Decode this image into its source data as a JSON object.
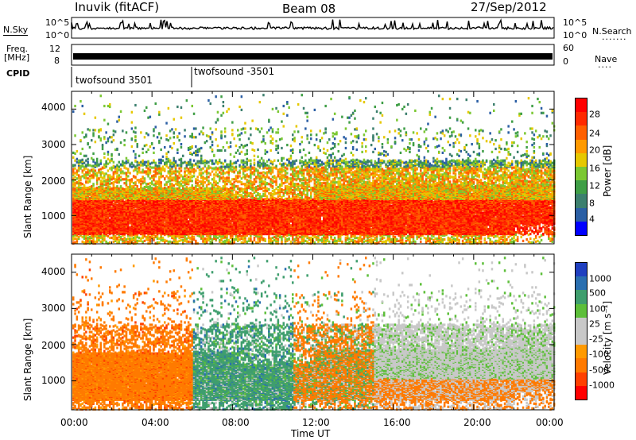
{
  "header": {
    "station": "Inuvik (fitACF)",
    "beam": "Beam 08",
    "date": "27/Sep/2012"
  },
  "summary": {
    "left_top_label": "N.Sky",
    "left_top_ticks": [
      "10^5",
      "10^0"
    ],
    "right_top_label": "N.Search",
    "right_top_ticks": [
      "10^5",
      "10^0"
    ],
    "freq_label": "Freq.",
    "freq_unit": "[MHz]",
    "freq_ticks": [
      "12",
      "8"
    ],
    "nave_label": "Nave",
    "nave_ticks": [
      "60",
      "0"
    ],
    "cpid_label": "CPID",
    "cpid_segments": [
      {
        "name": "twofsound 3501",
        "start_hour": 0
      },
      {
        "name": "twofsound -3501",
        "start_hour": 6
      }
    ]
  },
  "chart_data": [
    {
      "type": "heatmap",
      "name": "power",
      "xlabel": "",
      "ylabel": "Slant Range [km]",
      "xlim": [
        0,
        24
      ],
      "ylim": [
        200,
        4500
      ],
      "yticks": [
        1000,
        2000,
        3000,
        4000
      ],
      "colorbar": {
        "label": "Power [dB]",
        "ticks": [
          "28",
          "24",
          "20",
          "16",
          "12",
          "8",
          "4"
        ],
        "colors": [
          "#ff0000",
          "#ff2a00",
          "#ff6000",
          "#ff9a00",
          "#e6c800",
          "#7bc832",
          "#3f9e46",
          "#3c7f6e",
          "#2b5fa5",
          "#0000ff"
        ]
      }
    },
    {
      "type": "heatmap",
      "name": "velocity",
      "xlabel": "Time UT",
      "ylabel": "Slant Range [km]",
      "xlim": [
        0,
        24
      ],
      "ylim": [
        200,
        4500
      ],
      "yticks": [
        1000,
        2000,
        3000,
        4000
      ],
      "xticks": [
        "00:00",
        "04:00",
        "08:00",
        "12:00",
        "16:00",
        "20:00",
        "00:00"
      ],
      "colorbar": {
        "label": "Velocity [m s⁻¹]",
        "ticks": [
          "1000",
          "500",
          "100",
          "25",
          "-25",
          "-100",
          "-500",
          "-1000"
        ],
        "colors": [
          "#2040c0",
          "#2a6fb0",
          "#3f9e6e",
          "#5dbf3a",
          "#c8c8c8",
          "#c8c8c8",
          "#ff9a00",
          "#ff7a00",
          "#ff4000",
          "#ff0000"
        ]
      }
    }
  ]
}
